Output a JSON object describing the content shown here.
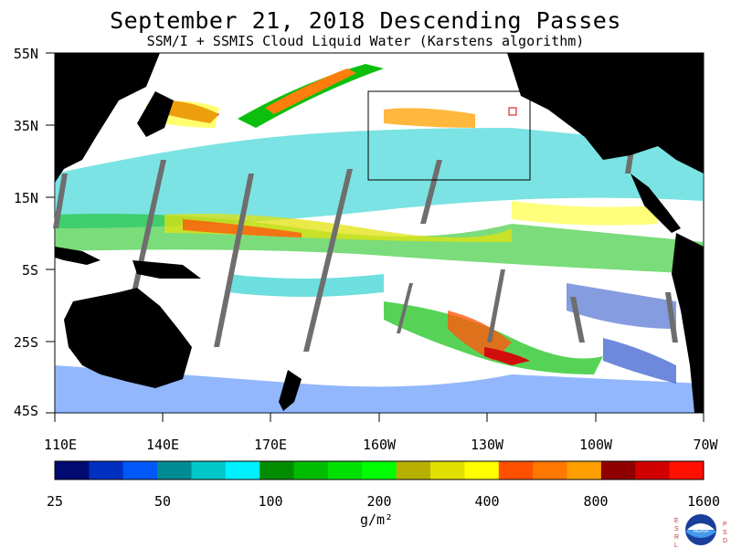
{
  "title": "September 21, 2018  Descending Passes",
  "subtitle": "SSM/I + SSMIS Cloud Liquid Water (Karstens algorithm)",
  "lat_labels": [
    "55N",
    "35N",
    "15N",
    "5S",
    "25S",
    "45S"
  ],
  "lon_labels": [
    "110E",
    "140E",
    "170E",
    "160W",
    "130W",
    "100W",
    "70W"
  ],
  "colorbar": {
    "colors": [
      "#000a70",
      "#0030c0",
      "#0058f8",
      "#008c94",
      "#00c8c8",
      "#00f0ff",
      "#008c00",
      "#00bc00",
      "#00e000",
      "#00ff00",
      "#b8b000",
      "#e0e000",
      "#ffff00",
      "#ff5000",
      "#ff7800",
      "#ffa000",
      "#900000",
      "#d00000",
      "#ff1000"
    ],
    "labels": [
      "25",
      "50",
      "100",
      "200",
      "400",
      "800",
      "1600"
    ],
    "units": "g/m²"
  },
  "logo": {
    "left_letters": "ESRL",
    "right_letters": "PSD",
    "center": "NOAA"
  }
}
